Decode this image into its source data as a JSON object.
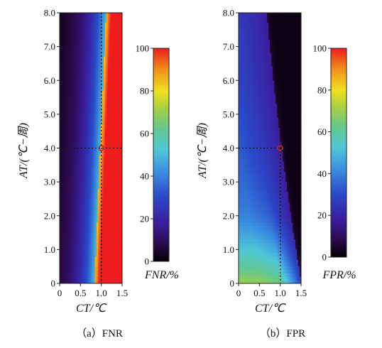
{
  "chart_data": [
    {
      "type": "heatmap",
      "caption": "（a）FNR",
      "xlabel": "CT/℃",
      "ylabel": "AT/(℃−周)",
      "xlim": [
        0,
        1.5
      ],
      "ylim": [
        0,
        8.0
      ],
      "xticks": [
        "0",
        "0.5",
        "1.0",
        "1.5"
      ],
      "yticks": [
        "0",
        "1.0",
        "2.0",
        "3.0",
        "4.0",
        "5.0",
        "6.0",
        "7.0",
        "8.0"
      ],
      "colorbar": {
        "label": "FNR/%",
        "ticks": [
          "0",
          "20",
          "40",
          "60",
          "80",
          "100"
        ],
        "range": [
          0,
          100
        ]
      },
      "marker": {
        "x": 1.0,
        "y": 4.0
      },
      "grid": false
    },
    {
      "type": "heatmap",
      "caption": "（b）FPR",
      "xlabel": "CT/℃",
      "ylabel": "AT/(℃−周)",
      "xlim": [
        0,
        1.5
      ],
      "ylim": [
        0,
        8.0
      ],
      "xticks": [
        "0",
        "0.5",
        "1.0",
        "1.5"
      ],
      "yticks": [
        "0",
        "1.0",
        "2.0",
        "3.0",
        "4.0",
        "5.0",
        "6.0",
        "7.0",
        "8.0"
      ],
      "colorbar": {
        "label": "FPR/%",
        "ticks": [
          "0",
          "20",
          "40",
          "60",
          "80",
          "100"
        ],
        "range": [
          0,
          100
        ]
      },
      "marker": {
        "x": 1.0,
        "y": 4.0
      },
      "grid": false
    }
  ],
  "colors": {
    "marker": "#cc2222",
    "colormap": [
      "#000000",
      "#2a0a4a",
      "#3a1e9e",
      "#2a48c8",
      "#3a8ee0",
      "#4ec6d8",
      "#62c890",
      "#a8d040",
      "#f0e020",
      "#f09018",
      "#ee1c1c"
    ]
  }
}
